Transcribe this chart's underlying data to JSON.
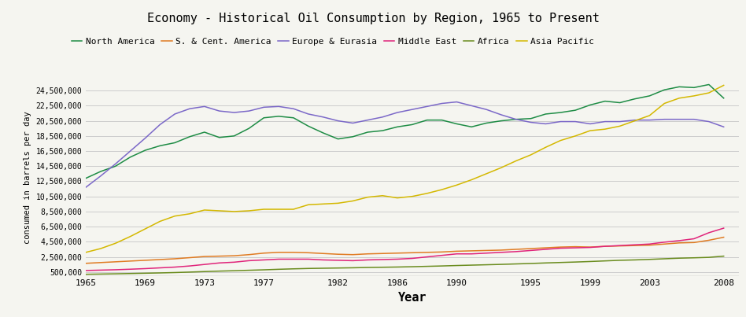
{
  "title": "Economy - Historical Oil Consumption by Region, 1965 to Present",
  "xlabel": "Year",
  "ylabel": "consumed in barrels per day",
  "background_color": "#f5f5f0",
  "grid_color": "#cccccc",
  "ylim": [
    0,
    26000000
  ],
  "yticks": [
    500000,
    2500000,
    4500000,
    6500000,
    8500000,
    10500000,
    12500000,
    14500000,
    16500000,
    18500000,
    20500000,
    22500000,
    24500000
  ],
  "xtick_years": [
    1965,
    1969,
    1973,
    1977,
    1982,
    1986,
    1990,
    1995,
    1999,
    2003,
    2008
  ],
  "series": {
    "North America": {
      "color": "#1e8c45",
      "years": [
        1965,
        1966,
        1967,
        1968,
        1969,
        1970,
        1971,
        1972,
        1973,
        1974,
        1975,
        1976,
        1977,
        1978,
        1979,
        1980,
        1981,
        1982,
        1983,
        1984,
        1985,
        1986,
        1987,
        1988,
        1989,
        1990,
        1991,
        1992,
        1993,
        1994,
        1995,
        1996,
        1997,
        1998,
        1999,
        2000,
        2001,
        2002,
        2003,
        2004,
        2005,
        2006,
        2007,
        2008
      ],
      "values": [
        12900000,
        13800000,
        14500000,
        15700000,
        16600000,
        17200000,
        17600000,
        18400000,
        19000000,
        18300000,
        18500000,
        19500000,
        20900000,
        21100000,
        20900000,
        19800000,
        18900000,
        18100000,
        18400000,
        19000000,
        19200000,
        19700000,
        20000000,
        20600000,
        20600000,
        20100000,
        19700000,
        20200000,
        20500000,
        20700000,
        20800000,
        21400000,
        21600000,
        21900000,
        22600000,
        23100000,
        22900000,
        23400000,
        23800000,
        24600000,
        25000000,
        24900000,
        25300000,
        23500000
      ]
    },
    "S. & Cent. America": {
      "color": "#e07b22",
      "years": [
        1965,
        1966,
        1967,
        1968,
        1969,
        1970,
        1971,
        1972,
        1973,
        1974,
        1975,
        1976,
        1977,
        1978,
        1979,
        1980,
        1981,
        1982,
        1983,
        1984,
        1985,
        1986,
        1987,
        1988,
        1989,
        1990,
        1991,
        1992,
        1993,
        1994,
        1995,
        1996,
        1997,
        1998,
        1999,
        2000,
        2001,
        2002,
        2003,
        2004,
        2005,
        2006,
        2007,
        2008
      ],
      "values": [
        1650000,
        1750000,
        1850000,
        1950000,
        2050000,
        2150000,
        2250000,
        2400000,
        2550000,
        2600000,
        2650000,
        2800000,
        3000000,
        3100000,
        3100000,
        3050000,
        2950000,
        2850000,
        2800000,
        2900000,
        2950000,
        3000000,
        3050000,
        3100000,
        3150000,
        3250000,
        3300000,
        3350000,
        3400000,
        3500000,
        3600000,
        3700000,
        3800000,
        3850000,
        3800000,
        3900000,
        3950000,
        4000000,
        4050000,
        4200000,
        4350000,
        4400000,
        4700000,
        5100000
      ]
    },
    "Europe & Eurasia": {
      "color": "#7b68c8",
      "years": [
        1965,
        1966,
        1967,
        1968,
        1969,
        1970,
        1971,
        1972,
        1973,
        1974,
        1975,
        1976,
        1977,
        1978,
        1979,
        1980,
        1981,
        1982,
        1983,
        1984,
        1985,
        1986,
        1987,
        1988,
        1989,
        1990,
        1991,
        1992,
        1993,
        1994,
        1995,
        1996,
        1997,
        1998,
        1999,
        2000,
        2001,
        2002,
        2003,
        2004,
        2005,
        2006,
        2007,
        2008
      ],
      "values": [
        11700000,
        13200000,
        14800000,
        16500000,
        18200000,
        20000000,
        21400000,
        22100000,
        22400000,
        21800000,
        21600000,
        21800000,
        22300000,
        22400000,
        22100000,
        21400000,
        21000000,
        20500000,
        20200000,
        20600000,
        21000000,
        21600000,
        22000000,
        22400000,
        22800000,
        23000000,
        22500000,
        22000000,
        21300000,
        20700000,
        20300000,
        20100000,
        20400000,
        20400000,
        20100000,
        20400000,
        20400000,
        20600000,
        20600000,
        20700000,
        20700000,
        20700000,
        20400000,
        19700000
      ]
    },
    "Middle East": {
      "color": "#e0247a",
      "years": [
        1965,
        1966,
        1967,
        1968,
        1969,
        1970,
        1971,
        1972,
        1973,
        1974,
        1975,
        1976,
        1977,
        1978,
        1979,
        1980,
        1981,
        1982,
        1983,
        1984,
        1985,
        1986,
        1987,
        1988,
        1989,
        1990,
        1991,
        1992,
        1993,
        1994,
        1995,
        1996,
        1997,
        1998,
        1999,
        2000,
        2001,
        2002,
        2003,
        2004,
        2005,
        2006,
        2007,
        2008
      ],
      "values": [
        700000,
        750000,
        800000,
        870000,
        950000,
        1050000,
        1150000,
        1300000,
        1500000,
        1700000,
        1800000,
        2000000,
        2100000,
        2200000,
        2200000,
        2200000,
        2100000,
        2050000,
        2000000,
        2100000,
        2150000,
        2200000,
        2300000,
        2500000,
        2700000,
        2900000,
        2900000,
        3000000,
        3100000,
        3200000,
        3350000,
        3500000,
        3650000,
        3700000,
        3750000,
        3900000,
        4000000,
        4100000,
        4200000,
        4450000,
        4650000,
        4900000,
        5700000,
        6300000
      ]
    },
    "Africa": {
      "color": "#6a8c1e",
      "years": [
        1965,
        1966,
        1967,
        1968,
        1969,
        1970,
        1971,
        1972,
        1973,
        1974,
        1975,
        1976,
        1977,
        1978,
        1979,
        1980,
        1981,
        1982,
        1983,
        1984,
        1985,
        1986,
        1987,
        1988,
        1989,
        1990,
        1991,
        1992,
        1993,
        1994,
        1995,
        1996,
        1997,
        1998,
        1999,
        2000,
        2001,
        2002,
        2003,
        2004,
        2005,
        2006,
        2007,
        2008
      ],
      "values": [
        200000,
        230000,
        260000,
        300000,
        340000,
        380000,
        430000,
        490000,
        560000,
        620000,
        670000,
        730000,
        790000,
        860000,
        920000,
        970000,
        1000000,
        1030000,
        1060000,
        1100000,
        1130000,
        1160000,
        1200000,
        1250000,
        1300000,
        1360000,
        1410000,
        1460000,
        1510000,
        1570000,
        1630000,
        1700000,
        1760000,
        1820000,
        1890000,
        1970000,
        2050000,
        2100000,
        2170000,
        2250000,
        2330000,
        2380000,
        2440000,
        2600000
      ]
    },
    "Asia Pacific": {
      "color": "#d4b800",
      "years": [
        1965,
        1966,
        1967,
        1968,
        1969,
        1970,
        1971,
        1972,
        1973,
        1974,
        1975,
        1976,
        1977,
        1978,
        1979,
        1980,
        1981,
        1982,
        1983,
        1984,
        1985,
        1986,
        1987,
        1988,
        1989,
        1990,
        1991,
        1992,
        1993,
        1994,
        1995,
        1996,
        1997,
        1998,
        1999,
        2000,
        2001,
        2002,
        2003,
        2004,
        2005,
        2006,
        2007,
        2008
      ],
      "values": [
        3100000,
        3600000,
        4300000,
        5200000,
        6200000,
        7200000,
        7900000,
        8200000,
        8700000,
        8600000,
        8500000,
        8600000,
        8800000,
        8800000,
        8800000,
        9400000,
        9500000,
        9600000,
        9900000,
        10400000,
        10600000,
        10300000,
        10500000,
        10900000,
        11400000,
        12000000,
        12700000,
        13500000,
        14300000,
        15200000,
        16000000,
        17000000,
        17900000,
        18500000,
        19200000,
        19400000,
        19800000,
        20500000,
        21200000,
        22800000,
        23500000,
        23800000,
        24200000,
        25200000
      ]
    }
  },
  "legend_order": [
    "North America",
    "S. & Cent. America",
    "Europe & Eurasia",
    "Middle East",
    "Africa",
    "Asia Pacific"
  ]
}
